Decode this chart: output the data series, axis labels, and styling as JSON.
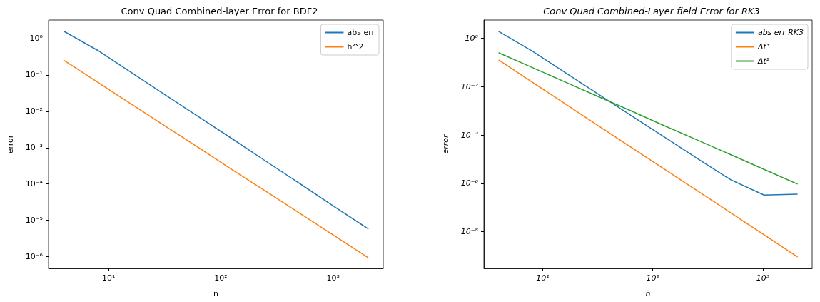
{
  "chart_data": [
    {
      "type": "line",
      "title": "Conv Quad Combined-layer Error for BDF2",
      "xlabel": "n",
      "ylabel": "error",
      "log": "xy",
      "grid": false,
      "legend": "top right",
      "marker": "none",
      "line_style": "solid",
      "x": [
        4,
        8,
        16,
        32,
        64,
        128,
        256,
        512,
        1024,
        2048
      ],
      "xlim": [
        2.92,
        2800
      ],
      "xticks": [
        {
          "value": 10,
          "label": "10¹"
        },
        {
          "value": 100,
          "label": "10²"
        },
        {
          "value": 1000,
          "label": "10³"
        }
      ],
      "ylim": [
        4.8e-07,
        3.2
      ],
      "yticks": [
        {
          "value": 1e-06,
          "label": "10⁻⁶"
        },
        {
          "value": 1e-05,
          "label": "10⁻⁵"
        },
        {
          "value": 0.0001,
          "label": "10⁻⁴"
        },
        {
          "value": 0.001,
          "label": "10⁻³"
        },
        {
          "value": 0.01,
          "label": "10⁻²"
        },
        {
          "value": 0.1,
          "label": "10⁻¹"
        },
        {
          "value": 1,
          "label": "10⁰"
        }
      ],
      "series": [
        {
          "name": "abs err",
          "color": "#1f77b4",
          "values": [
            1.57,
            0.47,
            0.115,
            0.028,
            0.0069,
            0.0017,
            0.00041,
            0.0001,
            2.4e-05,
            5.9e-06
          ]
        },
        {
          "name": "h^2",
          "color": "#ff7f0e",
          "values": [
            0.25,
            0.0625,
            0.0156,
            0.0039,
            0.00098,
            0.00024,
            6.1e-05,
            1.53e-05,
            3.8e-06,
            9.5e-07
          ]
        }
      ]
    },
    {
      "type": "line",
      "title": "Conv Quad Combined-Layer field Error for RK3",
      "xlabel": "n",
      "ylabel": "error",
      "log": "xy",
      "grid": false,
      "legend": "top right",
      "marker": "none",
      "line_style": "solid",
      "x": [
        4,
        8,
        16,
        32,
        64,
        128,
        256,
        512,
        1024,
        2048
      ],
      "xlim": [
        2.92,
        2800
      ],
      "xticks": [
        {
          "value": 10,
          "label": "10¹"
        },
        {
          "value": 100,
          "label": "10²"
        },
        {
          "value": 1000,
          "label": "10³"
        }
      ],
      "ylim": [
        3.05e-10,
        5.7
      ],
      "yticks": [
        {
          "value": 1e-08,
          "label": "10⁻⁸"
        },
        {
          "value": 1e-06,
          "label": "10⁻⁶"
        },
        {
          "value": 0.0001,
          "label": "10⁻⁴"
        },
        {
          "value": 0.01,
          "label": "10⁻²"
        },
        {
          "value": 1,
          "label": "10⁰"
        }
      ],
      "series": [
        {
          "name": "abs err RK3",
          "color": "#1f77b4",
          "values": [
            1.9,
            0.3,
            0.0385,
            0.0049,
            0.00063,
            8.1e-05,
            1.04e-05,
            1.4e-06,
            3.3e-07,
            3.6e-07
          ]
        },
        {
          "name": "Δt³",
          "color": "#ff7f0e",
          "values": [
            0.125,
            0.0156,
            0.00195,
            0.000244,
            3.05e-05,
            3.8e-06,
            4.8e-07,
            6e-08,
            7.5e-09,
            9.3e-10
          ]
        },
        {
          "name": "Δt²",
          "color": "#2ca02c",
          "values": [
            0.25,
            0.0625,
            0.0156,
            0.0039,
            0.00098,
            0.00024,
            6.1e-05,
            1.53e-05,
            3.8e-06,
            9.5e-07
          ]
        }
      ]
    }
  ]
}
